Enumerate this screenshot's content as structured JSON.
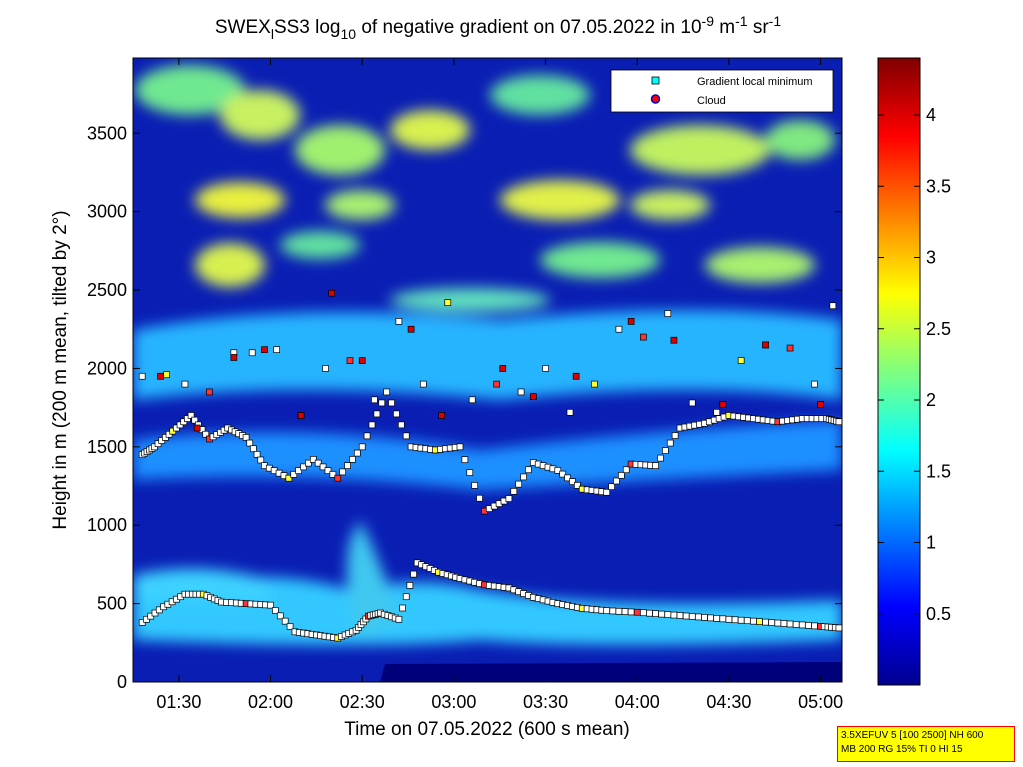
{
  "chart_data": {
    "type": "heatmap",
    "title": {
      "prefix": "SWEX",
      "prefix_sub": "l",
      "mid1": "SS3 log",
      "mid1_sub": "10",
      "mid2": " of negative gradient on 07.05.2022 in 10",
      "exp1": "-9",
      "mid3": " m",
      "exp2": "-1",
      "mid4": " sr",
      "exp3": "-1"
    },
    "xlabel": "Time on 07.05.2022 (600 s mean)",
    "ylabel": "Height in m (200 m mean, tilted by 2°)",
    "x_axis": {
      "ticks": [
        "01:30",
        "02:00",
        "02:30",
        "03:00",
        "03:30",
        "04:00",
        "04:30",
        "05:00"
      ],
      "tick_minutes": [
        90,
        120,
        150,
        180,
        210,
        240,
        270,
        300
      ],
      "range_minutes": [
        75,
        307
      ]
    },
    "y_axis": {
      "ticks": [
        0,
        500,
        1000,
        1500,
        2000,
        2500,
        3000,
        3500
      ],
      "range": [
        0,
        3980
      ]
    },
    "colorbar": {
      "colormap": "jet",
      "ticks": [
        "0.5",
        "1",
        "1.5",
        "2",
        "2.5",
        "3",
        "3.5",
        "4"
      ],
      "tick_values": [
        0.5,
        1,
        1.5,
        2,
        2.5,
        3,
        3.5,
        4
      ],
      "range": [
        0,
        4.4
      ]
    },
    "legend": {
      "placement": "top-right",
      "entries": [
        {
          "label": "Gradient local minimum",
          "marker": "square",
          "color": "#00ffff"
        },
        {
          "label": "Cloud",
          "marker": "circle",
          "color": "#ff0000"
        }
      ]
    },
    "grid": false,
    "series": [
      {
        "label_ref": "legend.entries.0",
        "x": [
          78,
          85,
          92,
          98,
          104,
          112,
          120,
          128,
          135,
          142,
          148,
          152,
          156,
          162,
          168,
          175,
          182,
          190,
          198,
          206,
          214,
          222,
          230,
          240,
          250,
          260,
          270,
          280,
          290,
          300,
          306
        ],
        "y": [
          380,
          480,
          560,
          560,
          510,
          500,
          490,
          320,
          300,
          280,
          330,
          420,
          440,
          400,
          760,
          700,
          660,
          620,
          600,
          540,
          500,
          470,
          455,
          445,
          430,
          415,
          400,
          385,
          370,
          355,
          345
        ]
      },
      {
        "label_ref": "legend.entries.0",
        "x": [
          78,
          82,
          88,
          94,
          100,
          106,
          112,
          118,
          126,
          134,
          142,
          150,
          158,
          166,
          174,
          182,
          190,
          198,
          206,
          214,
          222,
          230,
          238,
          246,
          254,
          262,
          270,
          278,
          286,
          294,
          302,
          306
        ],
        "y": [
          1450,
          1500,
          1600,
          1700,
          1550,
          1620,
          1560,
          1380,
          1300,
          1420,
          1300,
          1500,
          1850,
          1500,
          1480,
          1500,
          1090,
          1170,
          1400,
          1350,
          1230,
          1210,
          1390,
          1380,
          1620,
          1650,
          1700,
          1680,
          1660,
          1680,
          1680,
          1660
        ]
      },
      {
        "label_ref": "legend.entries.0",
        "x": [
          78,
          86,
          92,
          100,
          108,
          114,
          122,
          130,
          138,
          146,
          154,
          162,
          170,
          178,
          186,
          194,
          202,
          210,
          218,
          226,
          234,
          242,
          250,
          258,
          266,
          274,
          282,
          290,
          298,
          304
        ],
        "y": [
          1950,
          1960,
          1900,
          1850,
          2100,
          2100,
          2120,
          1700,
          2000,
          2050,
          1800,
          2300,
          1900,
          2420,
          1800,
          1900,
          1850,
          2000,
          1720,
          1900,
          2250,
          2200,
          2350,
          1780,
          1720,
          2050,
          2150,
          2130,
          1900,
          2400
        ]
      },
      {
        "label_ref": "legend.entries.1",
        "x": [
          84,
          96,
          108,
          118,
          130,
          140,
          150,
          166,
          176,
          196,
          206,
          220,
          238,
          252,
          268,
          282,
          300
        ],
        "y": [
          1950,
          1620,
          2070,
          2120,
          1700,
          2480,
          2050,
          2250,
          1700,
          2000,
          1820,
          1950,
          2300,
          2180,
          1770,
          2150,
          1770
        ]
      }
    ]
  },
  "info_box": {
    "line1": "3.5XEFUV 5 [100 2500] NH 600",
    "line2": "MB 200 RG 15% TI 0 HI 15"
  }
}
